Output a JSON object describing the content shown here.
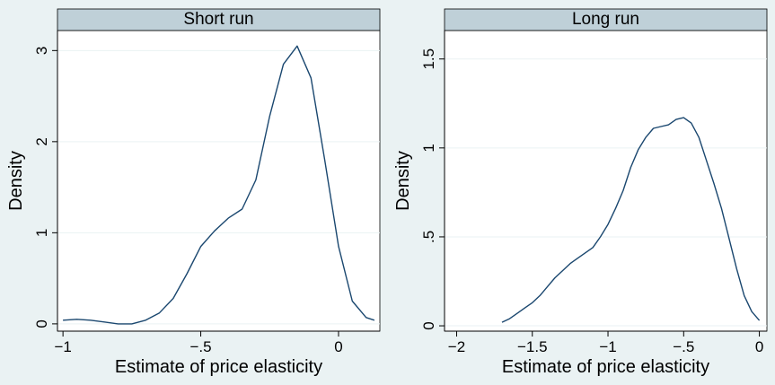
{
  "chart_data": [
    {
      "type": "line",
      "title": "Short run",
      "xlabel": "Estimate of price elasticity",
      "ylabel": "Density",
      "xlim": [
        -1.02,
        0.15
      ],
      "ylim": [
        -0.08,
        3.22
      ],
      "xticks": [
        -1,
        -0.5,
        0
      ],
      "xtick_labels": [
        "−1",
        "−.5",
        "0"
      ],
      "yticks": [
        0,
        1,
        2,
        3
      ],
      "ytick_labels": [
        "0",
        "1",
        "2",
        "3"
      ],
      "grid": true,
      "color": "#1a476f",
      "x": [
        -1.0,
        -0.95,
        -0.9,
        -0.85,
        -0.8,
        -0.75,
        -0.7,
        -0.65,
        -0.6,
        -0.55,
        -0.5,
        -0.45,
        -0.4,
        -0.35,
        -0.3,
        -0.25,
        -0.2,
        -0.15,
        -0.1,
        -0.05,
        0.0,
        0.05,
        0.1,
        0.13
      ],
      "y": [
        0.04,
        0.05,
        0.04,
        0.02,
        0.0,
        0.0,
        0.04,
        0.12,
        0.28,
        0.55,
        0.85,
        1.02,
        1.16,
        1.26,
        1.58,
        2.28,
        2.85,
        3.05,
        2.7,
        1.8,
        0.85,
        0.25,
        0.07,
        0.04
      ]
    },
    {
      "type": "line",
      "title": "Long run",
      "xlabel": "Estimate of price elasticity",
      "ylabel": "Density",
      "xlim": [
        -2.08,
        0.05
      ],
      "ylim": [
        -0.03,
        1.66
      ],
      "xticks": [
        -2,
        -1.5,
        -1,
        -0.5,
        0
      ],
      "xtick_labels": [
        "−2",
        "−1.5",
        "−1",
        "−.5",
        "0"
      ],
      "yticks": [
        0,
        0.5,
        1,
        1.5
      ],
      "ytick_labels": [
        "0",
        ".5",
        "1",
        "1.5"
      ],
      "grid": true,
      "color": "#1a476f",
      "x": [
        -1.7,
        -1.65,
        -1.6,
        -1.55,
        -1.5,
        -1.45,
        -1.4,
        -1.35,
        -1.3,
        -1.25,
        -1.2,
        -1.15,
        -1.1,
        -1.05,
        -1.0,
        -0.95,
        -0.9,
        -0.85,
        -0.8,
        -0.75,
        -0.7,
        -0.65,
        -0.6,
        -0.55,
        -0.5,
        -0.45,
        -0.4,
        -0.35,
        -0.3,
        -0.25,
        -0.2,
        -0.15,
        -0.1,
        -0.05,
        0.0
      ],
      "y": [
        0.02,
        0.04,
        0.07,
        0.1,
        0.13,
        0.17,
        0.22,
        0.27,
        0.31,
        0.35,
        0.38,
        0.41,
        0.44,
        0.5,
        0.57,
        0.66,
        0.76,
        0.89,
        0.99,
        1.06,
        1.11,
        1.12,
        1.13,
        1.16,
        1.17,
        1.14,
        1.06,
        0.93,
        0.8,
        0.66,
        0.49,
        0.32,
        0.17,
        0.08,
        0.03
      ]
    }
  ]
}
